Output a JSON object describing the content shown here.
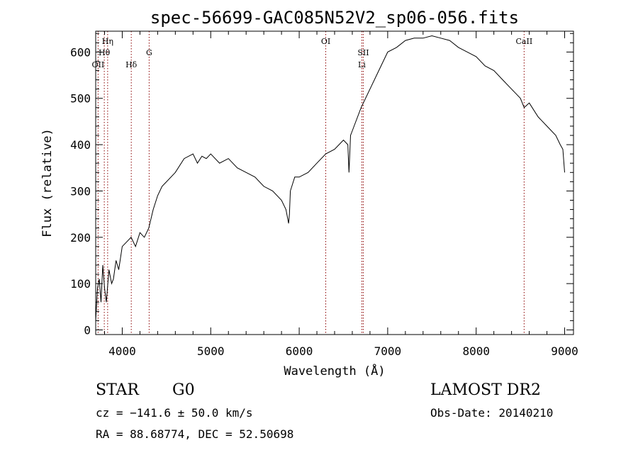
{
  "chart_data": {
    "type": "line",
    "title": "spec-56699-GAC085N52V2_sp06-056.fits",
    "xlabel": "Wavelength (Å)",
    "ylabel": "Flux (relative)",
    "xlim": [
      3700,
      9100
    ],
    "ylim": [
      -10,
      645
    ],
    "xticks": [
      4000,
      5000,
      6000,
      7000,
      8000,
      9000
    ],
    "xtick_labels": [
      "4000",
      "5000",
      "6000",
      "7000",
      "8000",
      "9000"
    ],
    "yticks": [
      0,
      100,
      200,
      300,
      400,
      500,
      600
    ],
    "ytick_labels": [
      "0",
      "100",
      "200",
      "300",
      "400",
      "500",
      "600"
    ],
    "grid": false,
    "series": [
      {
        "x": [
          3700,
          3720,
          3740,
          3760,
          3780,
          3800,
          3820,
          3850,
          3880,
          3900,
          3930,
          3960,
          4000,
          4050,
          4100,
          4150,
          4200,
          4250,
          4300,
          4350,
          4400,
          4450,
          4500,
          4600,
          4700,
          4800,
          4850,
          4900,
          4950,
          5000,
          5100,
          5200,
          5300,
          5400,
          5500,
          5600,
          5700,
          5800,
          5850,
          5880,
          5890,
          5900,
          5950,
          6000,
          6100,
          6200,
          6300,
          6400,
          6500,
          6550,
          6563,
          6580,
          6600,
          6700,
          6800,
          6900,
          7000,
          7100,
          7200,
          7300,
          7400,
          7500,
          7600,
          7700,
          7800,
          7900,
          8000,
          8100,
          8200,
          8300,
          8400,
          8450,
          8500,
          8542,
          8600,
          8700,
          8800,
          8900,
          8950,
          8980,
          9000
        ],
        "y": [
          20,
          90,
          110,
          60,
          140,
          90,
          60,
          130,
          100,
          110,
          150,
          130,
          180,
          190,
          200,
          180,
          210,
          200,
          220,
          260,
          290,
          310,
          320,
          340,
          370,
          380,
          360,
          375,
          370,
          380,
          360,
          370,
          350,
          340,
          330,
          310,
          300,
          280,
          260,
          230,
          250,
          300,
          330,
          330,
          340,
          360,
          380,
          390,
          410,
          400,
          340,
          420,
          430,
          480,
          520,
          560,
          600,
          610,
          625,
          630,
          630,
          635,
          630,
          625,
          610,
          600,
          590,
          570,
          560,
          540,
          520,
          510,
          500,
          480,
          490,
          460,
          440,
          420,
          400,
          390,
          340
        ]
      }
    ],
    "lines": [
      {
        "x": 3727,
        "label": "OII",
        "row": 3
      },
      {
        "x": 3797,
        "label": "Hθ",
        "row": 2
      },
      {
        "x": 3835,
        "label": "Hη",
        "row": 1
      },
      {
        "x": 4102,
        "label": "Hδ",
        "row": 3
      },
      {
        "x": 4304,
        "label": "G",
        "row": 2
      },
      {
        "x": 6300,
        "label": "OI",
        "row": 1
      },
      {
        "x": 6708,
        "label": "Li",
        "row": 3
      },
      {
        "x": 6724,
        "label": "SII",
        "row": 2
      },
      {
        "x": 8542,
        "label": "CaII",
        "row": 1
      }
    ]
  },
  "footer": {
    "class_label": "STAR",
    "subclass_label": "G0",
    "survey": "LAMOST DR2",
    "cz": "cz = −141.6 ± 50.0 km/s",
    "obs_date": "Obs-Date: 20140210",
    "radec": "RA =  88.68774, DEC =  52.50698"
  },
  "colors": {
    "spectrum": "#000000",
    "line_marker": "#8b0000",
    "axes": "#000000"
  }
}
